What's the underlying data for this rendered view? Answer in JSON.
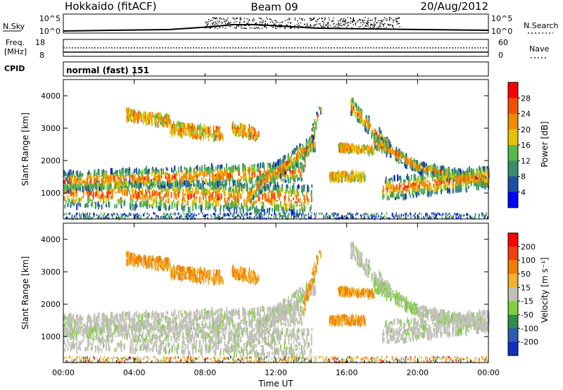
{
  "header": {
    "title": "Hokkaido (fitACF)",
    "beam": "Beam 09",
    "date": "20/Aug/2012"
  },
  "status": {
    "nsky_label": "N.Sky",
    "nsky_ticks": [
      "10^5",
      "10^0"
    ],
    "nsearch_label": "N.Search",
    "freq_label": "Freq.",
    "freq_unit": "[MHz]",
    "freq_ticks": [
      "18",
      "8"
    ],
    "nave_label": "Nave",
    "nave_ticks": [
      "60",
      "0"
    ],
    "cpid_label": "CPID",
    "cpid_value": "normal (fast) 151"
  },
  "chart_data": [
    {
      "type": "heatmap",
      "ylabel": "Slant Range [km]",
      "ylim": [
        200,
        4500
      ],
      "xlim": [
        0,
        24
      ],
      "y_ticks": [
        1000,
        2000,
        3000,
        4000
      ],
      "colorbar": {
        "label": "Power [dB]",
        "ticks": [
          4,
          8,
          12,
          16,
          20,
          24,
          28
        ],
        "colors": [
          "#0000ff",
          "#1e4fa0",
          "#3a8f6a",
          "#58b84a",
          "#e6c200",
          "#f08c00",
          "#f55000",
          "#ff0000"
        ]
      }
    },
    {
      "type": "heatmap",
      "ylabel": "Slant Range [km]",
      "ylim": [
        200,
        4500
      ],
      "xlim": [
        0,
        24
      ],
      "y_ticks": [
        1000,
        2000,
        3000,
        4000
      ],
      "colorbar": {
        "label": "Velocity [m s⁻¹]",
        "ticks": [
          "200",
          "100",
          "50",
          "15",
          "-15",
          "-50",
          "-100",
          "-200"
        ],
        "colors": [
          "#1030c0",
          "#2c5cb0",
          "#2e8f4a",
          "#7fd040",
          "#c0c0b8",
          "#f0b030",
          "#f08000",
          "#f04010",
          "#ff0000"
        ]
      }
    }
  ],
  "x_axis": {
    "ticks": [
      "00:00",
      "04:00",
      "08:00",
      "12:00",
      "16:00",
      "20:00",
      "00:00"
    ],
    "label": "Time UT"
  }
}
